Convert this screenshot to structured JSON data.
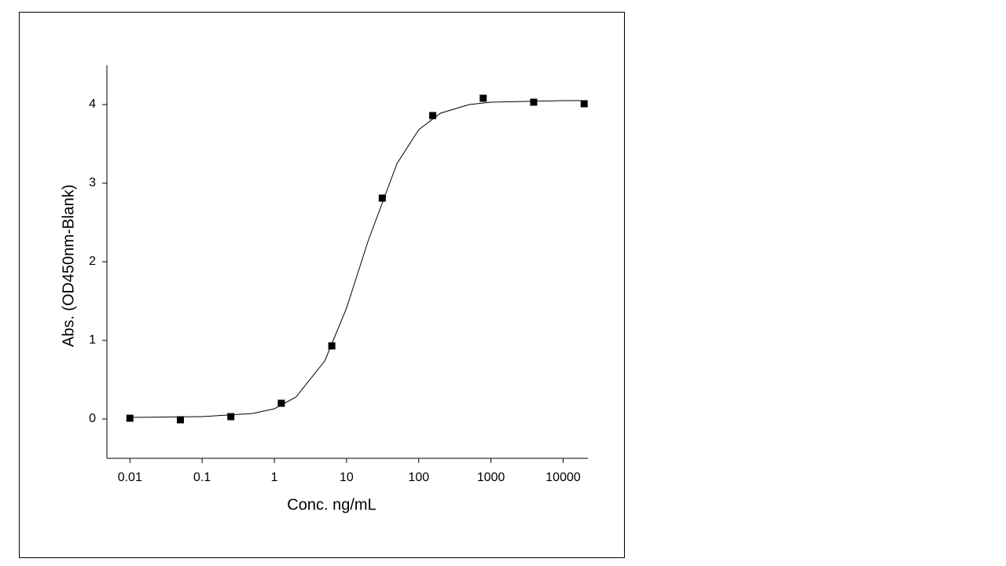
{
  "chart_data": {
    "type": "scatter",
    "xlabel": "Conc. ng/mL",
    "ylabel": "Abs. (OD450nm-Blank)",
    "xscale": "log",
    "xlim": [
      0.0048,
      22000
    ],
    "ylim": [
      -0.5,
      4.5
    ],
    "xticks": [
      0.01,
      0.1,
      1,
      10,
      100,
      1000,
      10000
    ],
    "yticks": [
      0,
      1,
      2,
      3,
      4
    ],
    "points": {
      "color": "#000000",
      "x": [
        0.01,
        0.05,
        0.25,
        1.25,
        6.25,
        31.25,
        156.25,
        781.25,
        3906.25,
        19531.25
      ],
      "y": [
        0.01,
        -0.01,
        0.03,
        0.2,
        0.93,
        2.81,
        3.86,
        4.08,
        4.03,
        4.01
      ]
    },
    "fit": {
      "color": "#000000",
      "x": [
        0.01,
        0.1,
        0.5,
        1,
        2,
        5,
        10,
        20,
        50,
        100,
        200,
        500,
        1000,
        10000,
        20000
      ],
      "y": [
        0.02,
        0.03,
        0.07,
        0.13,
        0.28,
        0.74,
        1.41,
        2.27,
        3.25,
        3.68,
        3.89,
        4.0,
        4.03,
        4.05,
        4.05
      ]
    }
  }
}
